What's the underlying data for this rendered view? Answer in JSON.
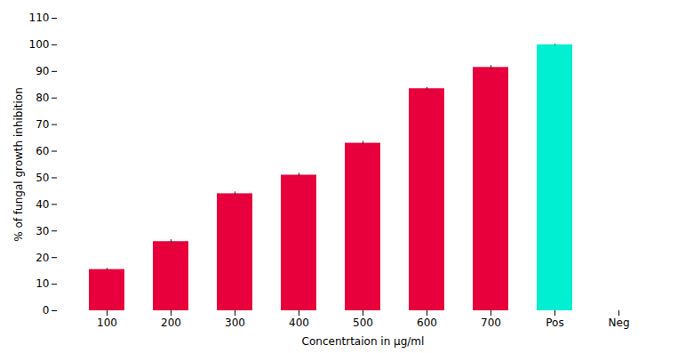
{
  "chart_data": {
    "type": "bar",
    "categories": [
      "100",
      "200",
      "300",
      "400",
      "500",
      "600",
      "700",
      "Pos",
      "Neg"
    ],
    "values": [
      15.5,
      26.0,
      44.0,
      51.0,
      63.0,
      83.5,
      91.5,
      100.0,
      0.0
    ],
    "errors": [
      0.4,
      0.7,
      0.7,
      0.7,
      0.7,
      0.5,
      0.7,
      0.2,
      0.0
    ],
    "colors": [
      "#E8003D",
      "#E8003D",
      "#E8003D",
      "#E8003D",
      "#E8003D",
      "#E8003D",
      "#E8003D",
      "#00EED1",
      "#E8003D"
    ],
    "xlabel": "Concentrtaion in μg/ml",
    "ylabel": "% of fungal growth inhibition",
    "ylim": [
      0,
      110
    ],
    "yticks": [
      0,
      10,
      20,
      30,
      40,
      50,
      60,
      70,
      80,
      90,
      100,
      110
    ],
    "grid": false
  }
}
